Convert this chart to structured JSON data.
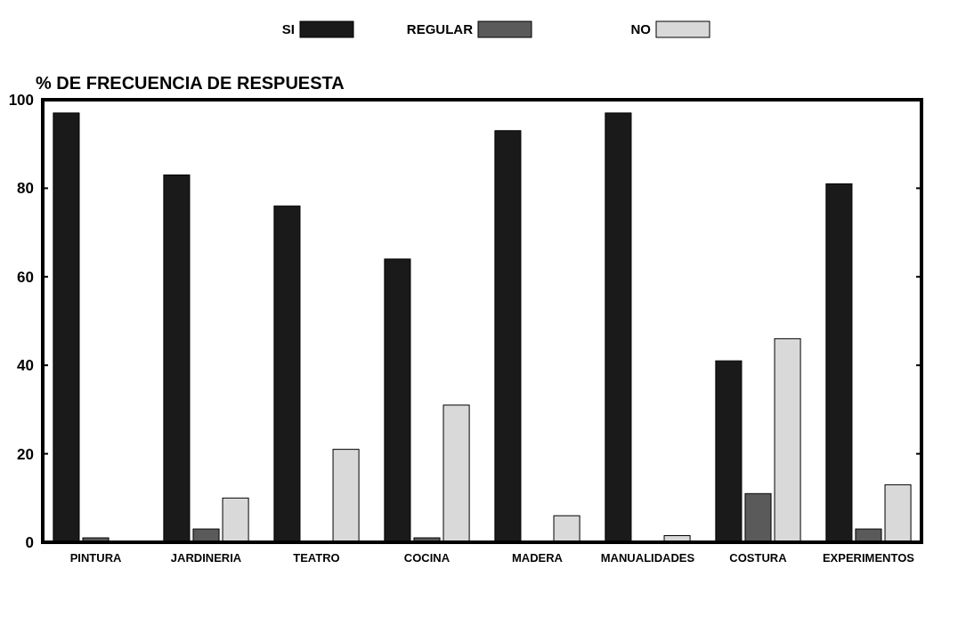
{
  "chart_data": {
    "type": "bar",
    "ylabel": "% DE FRECUENCIA DE RESPUESTA",
    "categories": [
      "PINTURA",
      "JARDINERIA",
      "TEATRO",
      "COCINA",
      "MADERA",
      "MANUALIDADES",
      "COSTURA",
      "EXPERIMENTOS"
    ],
    "series": [
      {
        "name": "SI",
        "color": "#1a1a1a",
        "values": [
          97,
          83,
          76,
          64,
          93,
          97,
          41,
          81
        ]
      },
      {
        "name": "REGULAR",
        "color": "#5a5a5a",
        "values": [
          1,
          3,
          0,
          1,
          0,
          0,
          11,
          3
        ]
      },
      {
        "name": "NO",
        "color": "#d9d9d9",
        "values": [
          0,
          10,
          21,
          31,
          6,
          1.5,
          46,
          13
        ]
      }
    ],
    "ylim": [
      0,
      100
    ],
    "yticks": [
      0,
      20,
      40,
      60,
      80,
      100
    ],
    "grid": false,
    "legend": "top"
  }
}
